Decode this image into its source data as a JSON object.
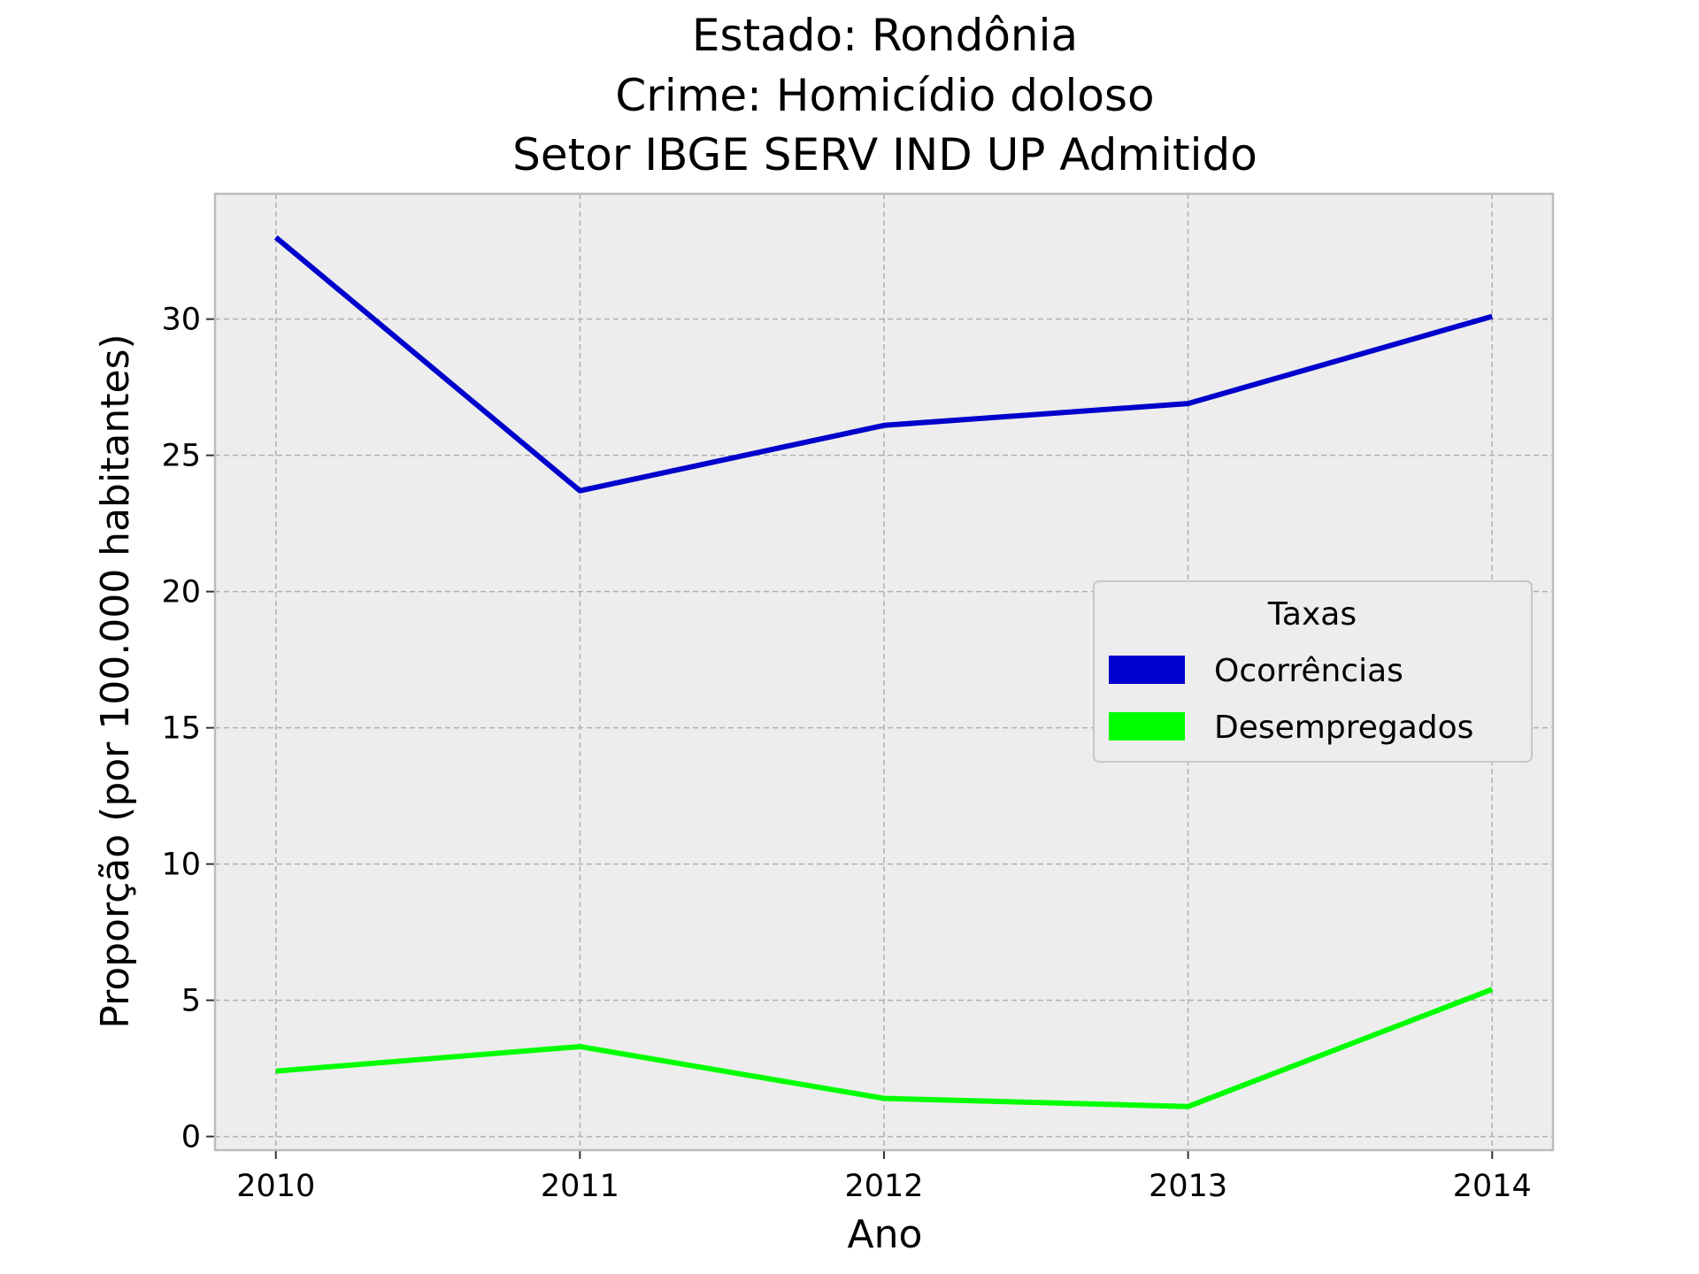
{
  "chart_data": {
    "type": "line",
    "title_lines": [
      "Estado: Rondônia",
      "Crime: Homicídio doloso",
      "Setor IBGE  SERV IND UP   Admitido"
    ],
    "xlabel": "Ano",
    "ylabel": "Proporção (por 100.000 habitantes)",
    "x": [
      2010,
      2011,
      2012,
      2013,
      2014
    ],
    "x_tick_labels": [
      "2010",
      "2011",
      "2012",
      "2013",
      "2014"
    ],
    "y_ticks": [
      0,
      5,
      10,
      15,
      20,
      25,
      30
    ],
    "y_tick_labels": [
      "0",
      "5",
      "10",
      "15",
      "20",
      "25",
      "30"
    ],
    "xlim": [
      2009.8,
      2014.2
    ],
    "ylim": [
      -0.5,
      34.6
    ],
    "grid": true,
    "legend": {
      "title": "Taxas",
      "placement": "center-right"
    },
    "series": [
      {
        "name": "Ocorrências",
        "color": "#0000cc",
        "values": [
          33.0,
          23.7,
          26.1,
          26.9,
          30.1
        ]
      },
      {
        "name": "Desempregados",
        "color": "#00ff00",
        "values": [
          2.4,
          3.3,
          1.4,
          1.1,
          5.4
        ]
      }
    ]
  },
  "colors": {
    "plot_background": "#ededed",
    "grid": "#b0b0b0",
    "frame": "#bcbcbc"
  }
}
